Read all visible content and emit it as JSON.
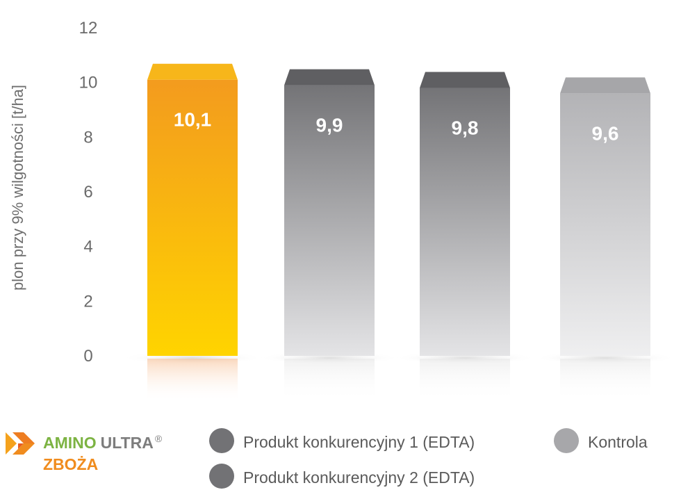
{
  "chart_data": {
    "type": "bar",
    "ylabel": "plon przy 9% wilgotności [t/ha]",
    "ylim": [
      0,
      12
    ],
    "yticks": [
      "0",
      "2",
      "4",
      "6",
      "8",
      "10",
      "12"
    ],
    "grid": false,
    "categories": [
      "Amino Ultra Zboża",
      "Produkt konkurencyjny 1 (EDTA)",
      "Produkt konkurencyjny 2 (EDTA)",
      "Kontrola"
    ],
    "values": [
      10.1,
      9.9,
      9.8,
      9.6
    ],
    "value_labels": [
      "10,1",
      "9,9",
      "9,8",
      "9,6"
    ],
    "bar_colors": [
      {
        "top": "#f39b1e",
        "bottom": "#ffd400",
        "cap": "#f7b61a"
      },
      {
        "top": "#747477",
        "bottom": "#e4e4e6",
        "cap": "#5f5f62"
      },
      {
        "top": "#747477",
        "bottom": "#e4e4e6",
        "cap": "#5f5f62"
      },
      {
        "top": "#b3b3b6",
        "bottom": "#efeff0",
        "cap": "#a6a6a9"
      }
    ]
  },
  "legend": {
    "brand": {
      "word1": "AMINO",
      "word2": "ULTRA",
      "reg": "®",
      "word3": "ZBOŻA"
    },
    "items": [
      {
        "label": "Produkt konkurencyjny 1 (EDTA)",
        "color": "#727275"
      },
      {
        "label": "Produkt konkurencyjny 2 (EDTA)",
        "color": "#727275"
      },
      {
        "label": "Kontrola",
        "color": "#a7a7aa"
      }
    ]
  }
}
